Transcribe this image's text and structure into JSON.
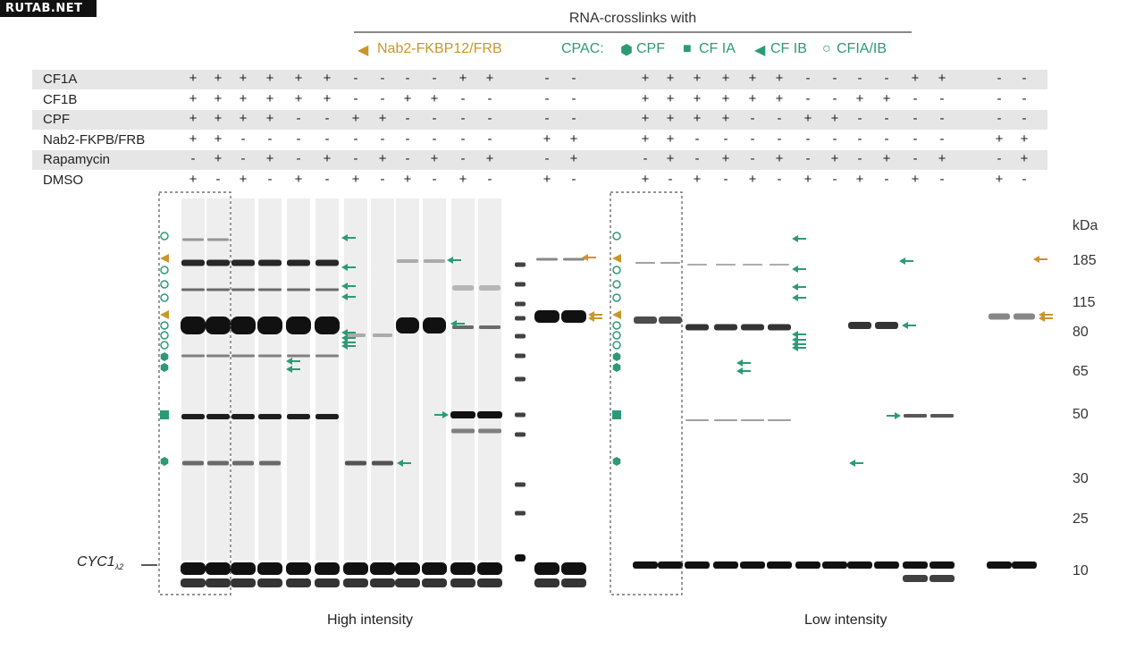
{
  "watermark": "RUTAB.NET",
  "title": "RNA-crosslinks with",
  "legend": {
    "nab2": "Nab2-FKBP12/FRB",
    "cpac": "CPAC:",
    "cpf": "CPF",
    "cfia": "CF IA",
    "cfib": "CF IB",
    "cfiaib": "CFIA/IB"
  },
  "rows": [
    {
      "label": "CF1A",
      "values": [
        "+",
        "+",
        "+",
        "+",
        "+",
        "+",
        "-",
        "-",
        "-",
        "-",
        "+",
        "+",
        "-",
        "-",
        "+",
        "+",
        "+",
        "+",
        "+",
        "+",
        "-",
        "-",
        "-",
        "-",
        "+",
        "+",
        "-",
        "-"
      ]
    },
    {
      "label": "CF1B",
      "values": [
        "+",
        "+",
        "+",
        "+",
        "+",
        "+",
        "-",
        "-",
        "+",
        "+",
        "-",
        "-",
        "-",
        "-",
        "+",
        "+",
        "+",
        "+",
        "+",
        "+",
        "-",
        "-",
        "+",
        "+",
        "-",
        "-",
        "-",
        "-"
      ]
    },
    {
      "label": "CPF",
      "values": [
        "+",
        "+",
        "+",
        "+",
        "-",
        "-",
        "+",
        "+",
        "-",
        "-",
        "-",
        "-",
        "-",
        "-",
        "+",
        "+",
        "+",
        "+",
        "-",
        "-",
        "+",
        "+",
        "-",
        "-",
        "-",
        "-",
        "-",
        "-"
      ]
    },
    {
      "label": "Nab2-FKPB/FRB",
      "values": [
        "+",
        "+",
        "-",
        "-",
        "-",
        "-",
        "-",
        "-",
        "-",
        "-",
        "-",
        "-",
        "+",
        "+",
        "+",
        "+",
        "-",
        "-",
        "-",
        "-",
        "-",
        "-",
        "-",
        "-",
        "-",
        "-",
        "+",
        "+"
      ]
    },
    {
      "label": "Rapamycin",
      "values": [
        "-",
        "+",
        "-",
        "+",
        "-",
        "+",
        "-",
        "+",
        "-",
        "+",
        "-",
        "+",
        "-",
        "+",
        "-",
        "+",
        "-",
        "+",
        "-",
        "+",
        "-",
        "+",
        "-",
        "+",
        "-",
        "+",
        "-",
        "+"
      ]
    },
    {
      "label": "DMSO",
      "values": [
        "+",
        "-",
        "+",
        "-",
        "+",
        "-",
        "+",
        "-",
        "+",
        "-",
        "+",
        "-",
        "+",
        "-",
        "+",
        "-",
        "+",
        "-",
        "+",
        "-",
        "+",
        "-",
        "+",
        "-",
        "+",
        "-",
        "+",
        "-"
      ]
    }
  ],
  "mw_unit": "kDa",
  "mw_markers": [
    "185",
    "115",
    "80",
    "65",
    "50",
    "30",
    "25",
    "10"
  ],
  "cyc_label": "CYC1",
  "cyc_sub": "λ2",
  "captions": {
    "high": "High intensity",
    "low": "Low intensity"
  },
  "colors": {
    "gold": "#c9962a",
    "teal": "#2c9a76",
    "band": "#111111"
  }
}
